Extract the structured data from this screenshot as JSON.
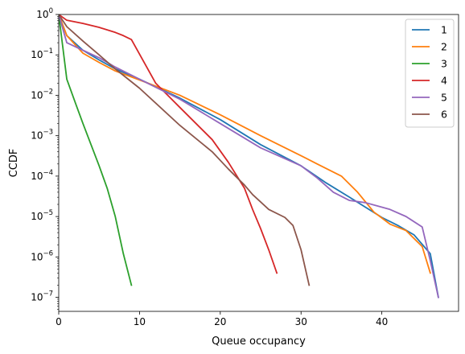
{
  "chart_data": {
    "type": "line",
    "title": "",
    "xlabel": "Queue occupancy",
    "ylabel": "CCDF",
    "xscale": "linear",
    "yscale": "log",
    "xlim": [
      0,
      49.5
    ],
    "ylim": [
      4.5e-08,
      1
    ],
    "xticks": [
      {
        "value": 0,
        "label": "0"
      },
      {
        "value": 10,
        "label": "10"
      },
      {
        "value": 20,
        "label": "20"
      },
      {
        "value": 30,
        "label": "30"
      },
      {
        "value": 40,
        "label": "40"
      }
    ],
    "yticks": [
      {
        "value": 1e-07,
        "base": "10",
        "exp": "−7"
      },
      {
        "value": 1e-06,
        "base": "10",
        "exp": "−6"
      },
      {
        "value": 1e-05,
        "base": "10",
        "exp": "−5"
      },
      {
        "value": 0.0001,
        "base": "10",
        "exp": "−4"
      },
      {
        "value": 0.001,
        "base": "10",
        "exp": "−3"
      },
      {
        "value": 0.01,
        "base": "10",
        "exp": "−2"
      },
      {
        "value": 0.1,
        "base": "10",
        "exp": "−1"
      },
      {
        "value": 1,
        "base": "10",
        "exp": "0"
      }
    ],
    "grid": false,
    "legend": "top-right",
    "series": [
      {
        "name": "1",
        "color": "#1f77b4",
        "x": [
          0,
          1,
          3,
          5,
          7,
          10,
          15,
          20,
          25,
          30,
          33,
          36,
          40,
          42,
          44,
          46,
          47
        ],
        "y": [
          1,
          0.3,
          0.13,
          0.075,
          0.045,
          0.025,
          0.0085,
          0.0025,
          0.0006,
          0.00018,
          7e-05,
          3e-05,
          9.5e-06,
          6e-06,
          3.5e-06,
          1.2e-06,
          1e-07
        ]
      },
      {
        "name": "2",
        "color": "#ff7f0e",
        "x": [
          0,
          1,
          3,
          5,
          7,
          10,
          15,
          20,
          25,
          30,
          32,
          35,
          37,
          39,
          41,
          43,
          45,
          46
        ],
        "y": [
          1,
          0.3,
          0.11,
          0.065,
          0.04,
          0.024,
          0.01,
          0.0033,
          0.001,
          0.00032,
          0.0002,
          0.0001,
          4e-05,
          1.3e-05,
          6.5e-06,
          4.5e-06,
          1.8e-06,
          4e-07
        ]
      },
      {
        "name": "3",
        "color": "#2ca02c",
        "x": [
          0,
          1,
          2,
          3,
          4,
          5,
          6,
          7,
          8,
          9
        ],
        "y": [
          1,
          0.025,
          0.007,
          0.002,
          0.0006,
          0.00018,
          5e-05,
          1e-05,
          1.2e-06,
          2e-07
        ]
      },
      {
        "name": "4",
        "color": "#d62728",
        "x": [
          0,
          1,
          3,
          5,
          7,
          8,
          9,
          12,
          15,
          17,
          19,
          21,
          23,
          24,
          25,
          26,
          27
        ],
        "y": [
          1,
          0.72,
          0.6,
          0.48,
          0.36,
          0.3,
          0.24,
          0.02,
          0.005,
          0.002,
          0.0008,
          0.00022,
          5e-05,
          1.5e-05,
          5e-06,
          1.5e-06,
          4e-07
        ]
      },
      {
        "name": "5",
        "color": "#9467bd",
        "x": [
          0,
          1,
          3,
          5,
          7,
          10,
          15,
          20,
          25,
          30,
          32,
          34,
          36,
          38,
          41,
          43,
          45,
          46,
          47
        ],
        "y": [
          1,
          0.2,
          0.13,
          0.085,
          0.05,
          0.025,
          0.008,
          0.002,
          0.0005,
          0.00018,
          9e-05,
          4e-05,
          2.5e-05,
          2.2e-05,
          1.5e-05,
          1e-05,
          5.5e-06,
          8e-07,
          1e-07
        ]
      },
      {
        "name": "6",
        "color": "#8c564b",
        "x": [
          0,
          1,
          3,
          5,
          7,
          10,
          15,
          19,
          21,
          23,
          24,
          26,
          28,
          29,
          30,
          31
        ],
        "y": [
          1,
          0.5,
          0.22,
          0.1,
          0.045,
          0.015,
          0.0018,
          0.0004,
          0.00015,
          6e-05,
          3.5e-05,
          1.5e-05,
          9.5e-06,
          6e-06,
          1.5e-06,
          2e-07
        ]
      }
    ]
  }
}
